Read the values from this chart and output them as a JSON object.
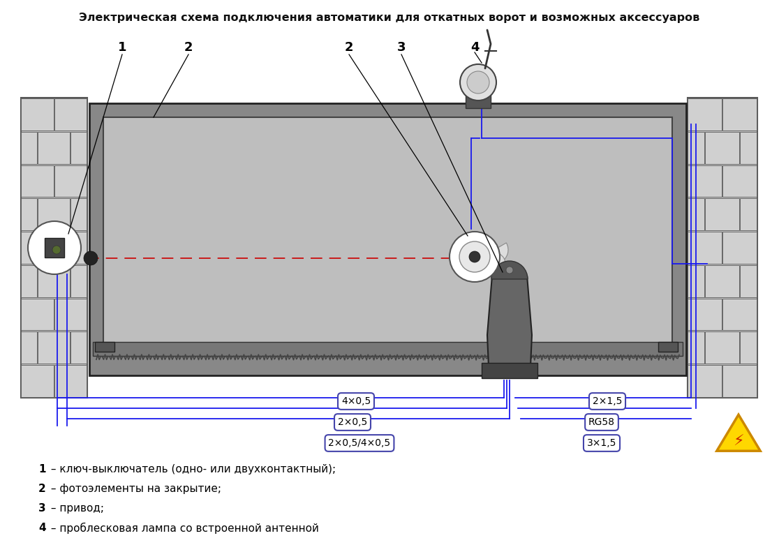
{
  "title": "Электрическая схема подключения автоматики для откатных ворот и возможных аксессуаров",
  "bg_color": "#ffffff",
  "blue_wire": "#1a1aee",
  "legend_items": [
    [
      "1",
      " – ключ-выключатель (одно- или двухконтактный);"
    ],
    [
      "2",
      " – фотоэлементы на закрытие;"
    ],
    [
      "3",
      " – привод;"
    ],
    [
      "4",
      " – проблесковая лампа со встроенной антенной"
    ]
  ]
}
